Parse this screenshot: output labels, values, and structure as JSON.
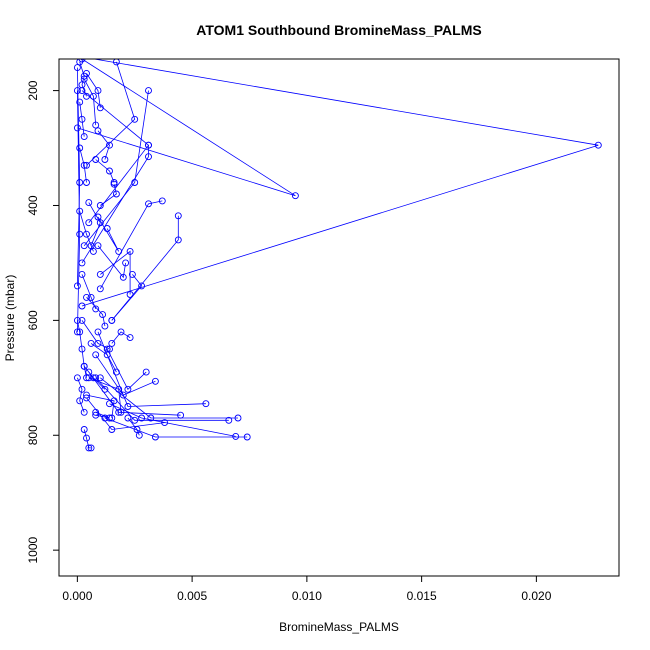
{
  "chart_data": {
    "type": "line",
    "title": "ATOM1 Southbound BromineMass_PALMS",
    "xlabel": "BromineMass_PALMS",
    "ylabel": "Pressure (mbar)",
    "xlim": [
      -0.0008,
      0.0236
    ],
    "ylim": [
      1045,
      145
    ],
    "y_reversed": true,
    "x_ticks": [
      0.0,
      0.005,
      0.01,
      0.015,
      0.02
    ],
    "x_tick_labels": [
      "0.000",
      "0.005",
      "0.010",
      "0.015",
      "0.020"
    ],
    "y_ticks": [
      200,
      400,
      600,
      800,
      1000
    ],
    "y_tick_labels": [
      "200",
      "400",
      "600",
      "800",
      "1000"
    ],
    "grid": false,
    "legend": "none",
    "colors": {
      "series": "#0000ff",
      "axis": "#000000"
    },
    "series": [
      {
        "x": [
          0.0,
          0.0227,
          0.0002
        ],
        "y": [
          140,
          295,
          575
        ]
      },
      {
        "x": [
          0.0,
          0.0095,
          0.0002
        ],
        "y": [
          265,
          383,
          145
        ]
      },
      {
        "x": [
          0.0002,
          0.0031,
          0.0005
        ],
        "y": [
          200,
          295,
          430
        ]
      },
      {
        "x": [
          0.0044,
          0.0044,
          0.0015
        ],
        "y": [
          418,
          460,
          600
        ]
      },
      {
        "x": [
          0.0037,
          0.0031,
          0.001
        ],
        "y": [
          392,
          397,
          545
        ]
      },
      {
        "x": [
          0.0031,
          0.0031,
          0.0002
        ],
        "y": [
          295,
          315,
          500
        ]
      },
      {
        "x": [
          0.0031,
          0.0025,
          0.0003
        ],
        "y": [
          200,
          360,
          470
        ]
      },
      {
        "x": [
          0.0017,
          0.0025,
          0.0004
        ],
        "y": [
          150,
          250,
          330
        ]
      },
      {
        "x": [
          0.0074,
          0.0034,
          0.0012
        ],
        "y": [
          803,
          803,
          770
        ]
      },
      {
        "x": [
          0.0069,
          0.0028,
          0.0014
        ],
        "y": [
          802,
          770,
          745
        ]
      },
      {
        "x": [
          0.007,
          0.0032,
          0.001
        ],
        "y": [
          770,
          770,
          700
        ]
      },
      {
        "x": [
          0.0066,
          0.0025,
          0.0008
        ],
        "y": [
          774,
          774,
          700
        ]
      },
      {
        "x": [
          0.0056,
          0.0022,
          0.0009
        ],
        "y": [
          745,
          750,
          620
        ]
      },
      {
        "x": [
          0.0045,
          0.0018,
          0.0005
        ],
        "y": [
          765,
          760,
          690
        ]
      },
      {
        "x": [
          0.0038,
          0.0015,
          0.0004
        ],
        "y": [
          778,
          790,
          735
        ]
      },
      {
        "x": [
          0.0034,
          0.002,
          0.0008
        ],
        "y": [
          706,
          730,
          660
        ]
      },
      {
        "x": [
          0.003,
          0.0022,
          0.0013
        ],
        "y": [
          690,
          720,
          650
        ]
      },
      {
        "x": [
          0.0027,
          0.0026,
          0.0022
        ],
        "y": [
          800,
          790,
          770
        ]
      },
      {
        "x": [
          0.0023,
          0.0019,
          0.0015
        ],
        "y": [
          630,
          620,
          640
        ]
      },
      {
        "x": [
          0.0024,
          0.0028,
          0.0015
        ],
        "y": [
          520,
          540,
          600
        ]
      },
      {
        "x": [
          0.0023,
          0.0023,
          0.001
        ],
        "y": [
          555,
          480,
          520
        ]
      },
      {
        "x": [
          0.0021,
          0.002,
          0.0009
        ],
        "y": [
          500,
          525,
          470
        ]
      },
      {
        "x": [
          0.0013,
          0.0018,
          0.0009
        ],
        "y": [
          440,
          480,
          420
        ]
      },
      {
        "x": [
          0.0016,
          0.0017,
          0.001
        ],
        "y": [
          363,
          380,
          400
        ]
      },
      {
        "x": [
          0.0008,
          0.0014,
          0.0016
        ],
        "y": [
          320,
          340,
          360
        ]
      },
      {
        "x": [
          0.0009,
          0.0014,
          0.0012
        ],
        "y": [
          270,
          295,
          320
        ]
      },
      {
        "x": [
          0.0004,
          0.0009,
          0.001
        ],
        "y": [
          170,
          200,
          230
        ]
      },
      {
        "x": [
          0.0003,
          0.0007,
          0.0008
        ],
        "y": [
          180,
          210,
          260
        ]
      },
      {
        "x": [
          0.0005,
          0.001,
          0.0006
        ],
        "y": [
          395,
          430,
          470
        ]
      },
      {
        "x": [
          0.0004,
          0.0011,
          0.0012
        ],
        "y": [
          560,
          590,
          610
        ]
      },
      {
        "x": [
          0.0006,
          0.0013,
          0.0017
        ],
        "y": [
          640,
          660,
          690
        ]
      },
      {
        "x": [
          0.0005,
          0.0018,
          0.0019
        ],
        "y": [
          700,
          720,
          760
        ]
      },
      {
        "x": [
          0.0004,
          0.0016,
          0.0015
        ],
        "y": [
          730,
          740,
          770
        ]
      },
      {
        "x": [
          0.0008,
          0.0014,
          0.0008
        ],
        "y": [
          760,
          770,
          765
        ]
      },
      {
        "x": [
          0.0003,
          0.0004,
          0.0005,
          0.0006
        ],
        "y": [
          790,
          805,
          822,
          822
        ]
      },
      {
        "x": [
          0.0003,
          0.0007,
          0.0012
        ],
        "y": [
          680,
          700,
          720
        ]
      },
      {
        "x": [
          0.0002,
          0.0009,
          0.0014
        ],
        "y": [
          600,
          640,
          650
        ]
      },
      {
        "x": [
          0.0002,
          0.0006,
          0.0008
        ],
        "y": [
          520,
          560,
          580
        ]
      },
      {
        "x": [
          0.0001,
          0.0004,
          0.0007
        ],
        "y": [
          410,
          450,
          480
        ]
      },
      {
        "x": [
          0.0001,
          0.0003,
          0.0004
        ],
        "y": [
          300,
          330,
          360
        ]
      },
      {
        "x": [
          0.0001,
          0.0002,
          0.0003
        ],
        "y": [
          220,
          250,
          280
        ]
      },
      {
        "x": [
          0.0001,
          0.0003,
          0.0002,
          0.0004
        ],
        "y": [
          150,
          175,
          190,
          210
        ]
      },
      {
        "x": [
          0.0,
          0.0001,
          0.0002,
          0.0003,
          0.0004
        ],
        "y": [
          600,
          620,
          650,
          680,
          700
        ]
      },
      {
        "x": [
          0.0,
          0.0002,
          0.0001,
          0.0003
        ],
        "y": [
          700,
          720,
          740,
          760
        ]
      },
      {
        "x": [
          0.0,
          0.0001,
          0.0
        ],
        "y": [
          160,
          360,
          540
        ]
      },
      {
        "x": [
          0.0,
          0.0001,
          0.0
        ],
        "y": [
          200,
          450,
          620
        ]
      }
    ]
  }
}
